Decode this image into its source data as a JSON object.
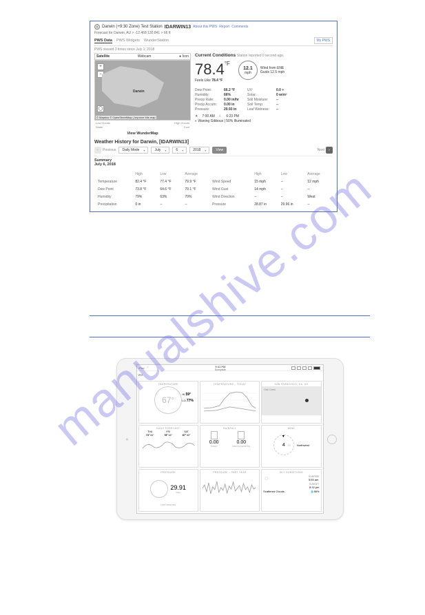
{
  "watermark": "manualshive.com",
  "dashboard": {
    "title_prefix": "Darwin (+9:30 Zone) Test Station",
    "station_id": "IDARWIN13",
    "links": {
      "about": "About this PWS",
      "report": "Report",
      "comments": "Comments"
    },
    "forecast_line": "Forecast for Darwin, AU > -12.468 130.841 > 66 ft",
    "tabs": {
      "pws_data": "PWS Data",
      "widgets": "PWS Widgets",
      "wunder": "WunderStation"
    },
    "mypws": "My PWS",
    "viewed": "PWS viewed 3 times since July 1, 2018",
    "map": {
      "tab_satellite": "Satellite",
      "tab_webcam": "Webcam",
      "icon_label": "Icon",
      "city": "Darwin",
      "attribution": "© Mapbox © OpenStreetMap | Improve this map",
      "legend_left": "Low Clouds",
      "legend_mid": "Water",
      "legend_right": "High Clouds",
      "legend_cool": "Cool",
      "view_wunder": "View WunderMap"
    },
    "conditions": {
      "title": "Current Conditions",
      "subtitle": "Station reported 0 second ago.",
      "temp": "78.4",
      "temp_unit": "°F",
      "feels_label": "Feels Like",
      "feels_val": "78.4 °F",
      "wind_speed": "12.1",
      "wind_unit": "mph",
      "wind_from": "Wind from ENE",
      "wind_gusts": "Gusts 12.5 mph",
      "rows": [
        {
          "l1": "Dew Point:",
          "v1": "66.2 °F",
          "l2": "UV:",
          "v2": "0.0 +"
        },
        {
          "l1": "Humidity:",
          "v1": "66%",
          "l2": "Solar:",
          "v2": "0 w/m²"
        },
        {
          "l1": "Precip Rate:",
          "v1": "0.00 in/hr",
          "l2": "Soil Moisture:",
          "v2": "--"
        },
        {
          "l1": "Precip Accum:",
          "v1": "0.00 in",
          "l2": "Soil Temp:",
          "v2": "--"
        },
        {
          "l1": "Pressure:",
          "v1": "29.93 in",
          "l2": "Leaf Wetness:",
          "v2": "--"
        }
      ],
      "sunrise": "7:00 AM",
      "sunset": "6:23 PM",
      "moon": "Waning Gibbous | 50% Illuminated"
    },
    "history": {
      "title": "Weather History for Darwin, [IDARWIN13]",
      "previous": "Previous",
      "next": "Next",
      "mode": "Daily Mode",
      "month": "July",
      "day": "6",
      "year": "2018",
      "view": "View",
      "summary_label": "Summary",
      "summary_date": "July 6, 2018",
      "headers": [
        "",
        "High",
        "Low",
        "Average",
        "",
        "High",
        "Low",
        "Average"
      ],
      "rows": [
        [
          "Temperature",
          "82.4 °F",
          "77.4 °F",
          "79.9 °F",
          "Wind Speed",
          "15 mph",
          "--",
          "12 mph"
        ],
        [
          "Dew Point",
          "73.8 °F",
          "64.6 °F",
          "70.1 °F",
          "Wind Gust",
          "14 mph",
          "--",
          "--"
        ],
        [
          "Humidity",
          "79%",
          "63%",
          "70%",
          "Wind Direction",
          "--",
          "--",
          "West"
        ],
        [
          "Precipitation",
          "0 in",
          "--",
          "--",
          "Pressure",
          "28.87 in",
          "29.96 in",
          "--"
        ]
      ]
    }
  },
  "ipad": {
    "status_left": "iPad",
    "time": "9:41 PM",
    "location": "Sunnyside",
    "logo": "wu",
    "tiles": {
      "t1": {
        "title": "TEMPERATURE",
        "temp": "67°",
        "hi_lbl": "HI",
        "hi": "59°",
        "lo_lbl": "LO",
        "lo": "77%"
      },
      "t2": {
        "title": "TEMPERATURE – TODAY"
      },
      "t3": {
        "title": "SAN FRANCISCO, CA, US",
        "area": "Oak Creek"
      },
      "t4": {
        "title": "DAILY FORECAST",
        "days": [
          {
            "d": "THU",
            "h": "74°",
            "l": "64°"
          },
          {
            "d": "FRI",
            "h": "78°",
            "l": "64°"
          },
          {
            "d": "SAT",
            "h": "67°",
            "l": "60°"
          }
        ]
      },
      "t5": {
        "title": "RAINFALL",
        "today_lbl": "TODAY",
        "today": "0.00",
        "yr_lbl": "PAST 12 MONTHS",
        "yr": "0.00",
        "unit": "in"
      },
      "t6": {
        "title": "WIND",
        "speed": "4",
        "gust": "15",
        "dir": "Northwest"
      },
      "t7": {
        "title": "PRESSURE",
        "val": "29.91",
        "sub": "LAST MINUTES",
        "unit": "inHg"
      },
      "t8": {
        "title": "PRESSURE – PAST YEAR"
      },
      "t9": {
        "title": "SKY CONDITIONS",
        "sunrise_lbl": "SUNRISE",
        "sunrise": "5:55 am",
        "sunset_lbl": "SUNSET",
        "sunset": "8:32 pm",
        "cond": "Scattered Clouds",
        "humid_lbl": "HUMIDITY",
        "humid": "86%"
      }
    }
  }
}
